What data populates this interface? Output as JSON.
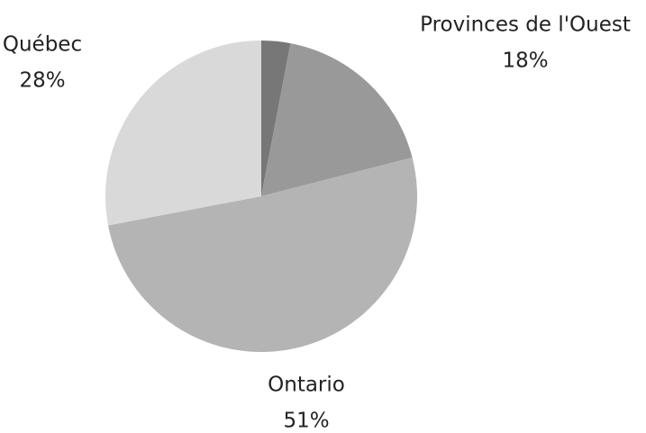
{
  "chart_data": {
    "type": "pie",
    "categories": [
      null,
      "Provinces de l'Ouest",
      "Ontario",
      "Québec"
    ],
    "values": [
      3,
      18,
      51,
      28
    ],
    "value_labels": [
      null,
      "18%",
      "51%",
      "28%"
    ],
    "colors": [
      "#777777",
      "#999999",
      "#b4b4b4",
      "#d9d9d9"
    ]
  }
}
